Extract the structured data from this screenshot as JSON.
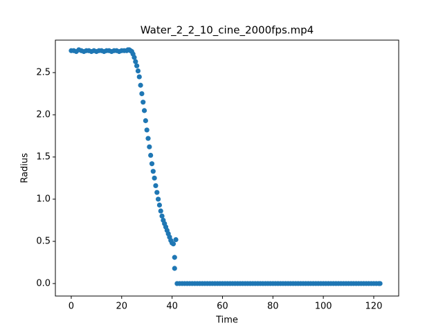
{
  "chart_data": {
    "type": "scatter",
    "title": "Water_2_2_10_cine_2000fps.mp4",
    "x_label": "Time",
    "y_label": "Radius",
    "color": "#1f77b4",
    "grid": false,
    "xlim": [
      -6.3,
      129.9
    ],
    "ylim": [
      -0.148,
      2.885
    ],
    "xticks": [
      0,
      20,
      40,
      60,
      80,
      100,
      120
    ],
    "yticks": [
      {
        "value": 0,
        "label": "0.0"
      },
      {
        "value": 0.5,
        "label": "0.5"
      },
      {
        "value": 1,
        "label": "1.0"
      },
      {
        "value": 1.5,
        "label": "1.5"
      },
      {
        "value": 2,
        "label": "2.0"
      },
      {
        "value": 2.5,
        "label": "2.5"
      }
    ],
    "x": [
      0,
      1,
      2,
      3,
      4,
      5,
      6,
      7,
      8,
      9,
      10,
      11,
      12,
      13,
      14,
      15,
      16,
      17,
      18,
      19,
      20,
      21,
      22,
      22.5,
      23,
      23.5,
      24,
      24.5,
      25,
      25.5,
      26,
      26.5,
      27,
      27.5,
      28,
      28.5,
      29,
      29.5,
      30,
      30.5,
      31,
      31.5,
      32,
      32.5,
      33,
      33.5,
      34,
      34.5,
      35,
      35.5,
      36,
      36.5,
      37,
      37.5,
      38,
      38.5,
      39,
      39.5,
      40,
      40.5,
      41,
      41,
      41.5,
      42,
      43,
      44,
      45,
      46,
      47,
      48,
      49,
      50,
      51,
      52,
      53,
      54,
      55,
      56,
      57,
      58,
      59,
      60,
      61,
      62,
      63,
      64,
      65,
      66,
      67,
      68,
      69,
      70,
      71,
      72,
      73,
      74,
      75,
      76,
      77,
      78,
      79,
      80,
      81,
      82,
      83,
      84,
      85,
      86,
      87,
      88,
      89,
      90,
      91,
      92,
      93,
      94,
      95,
      96,
      97,
      98,
      99,
      100,
      101,
      102,
      103,
      104,
      105,
      106,
      107,
      108,
      109,
      110,
      111,
      112,
      113,
      114,
      115,
      116,
      117,
      118,
      119,
      120,
      121,
      122,
      122.5
    ],
    "y": [
      2.76,
      2.76,
      2.75,
      2.77,
      2.76,
      2.75,
      2.76,
      2.76,
      2.75,
      2.76,
      2.75,
      2.76,
      2.76,
      2.75,
      2.76,
      2.76,
      2.75,
      2.76,
      2.76,
      2.75,
      2.76,
      2.76,
      2.76,
      2.77,
      2.77,
      2.76,
      2.75,
      2.72,
      2.68,
      2.63,
      2.58,
      2.52,
      2.45,
      2.35,
      2.25,
      2.15,
      2.05,
      1.93,
      1.82,
      1.72,
      1.62,
      1.52,
      1.42,
      1.33,
      1.25,
      1.16,
      1.08,
      1.0,
      0.93,
      0.86,
      0.8,
      0.75,
      0.71,
      0.67,
      0.63,
      0.59,
      0.55,
      0.51,
      0.48,
      0.47,
      0.31,
      0.18,
      0.52,
      0,
      0,
      0,
      0,
      0,
      0,
      0,
      0,
      0,
      0,
      0,
      0,
      0,
      0,
      0,
      0,
      0,
      0,
      0,
      0,
      0,
      0,
      0,
      0,
      0,
      0,
      0,
      0,
      0,
      0,
      0,
      0,
      0,
      0,
      0,
      0,
      0,
      0,
      0,
      0,
      0,
      0,
      0,
      0,
      0,
      0,
      0,
      0,
      0,
      0,
      0,
      0,
      0,
      0,
      0,
      0,
      0,
      0,
      0,
      0,
      0,
      0,
      0,
      0,
      0,
      0,
      0,
      0,
      0,
      0,
      0,
      0,
      0,
      0,
      0,
      0,
      0,
      0,
      0,
      0,
      0,
      0
    ]
  }
}
